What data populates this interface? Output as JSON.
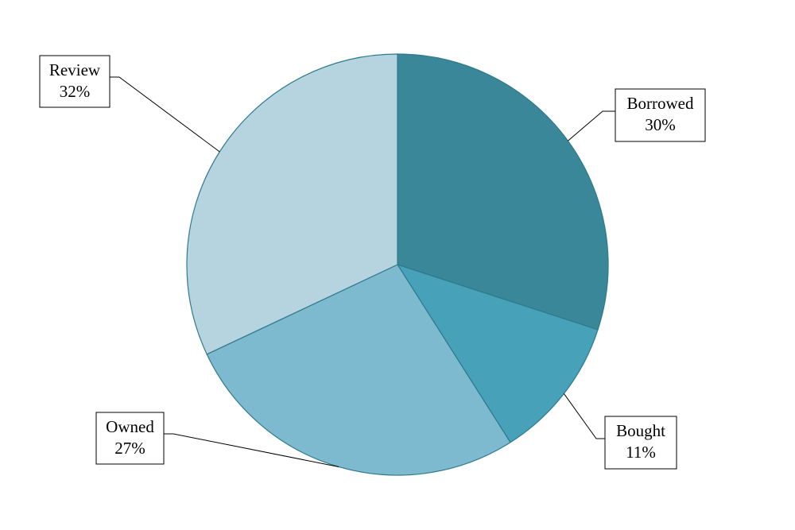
{
  "chart_data": {
    "type": "pie",
    "categories": [
      "Borrowed",
      "Bought",
      "Owned",
      "Review"
    ],
    "values": [
      30,
      11,
      27,
      32
    ],
    "value_labels": [
      "30%",
      "11%",
      "27%",
      "32%"
    ],
    "colors": [
      "#3a8799",
      "#46a1b9",
      "#7db9cf",
      "#b6d4df"
    ]
  }
}
